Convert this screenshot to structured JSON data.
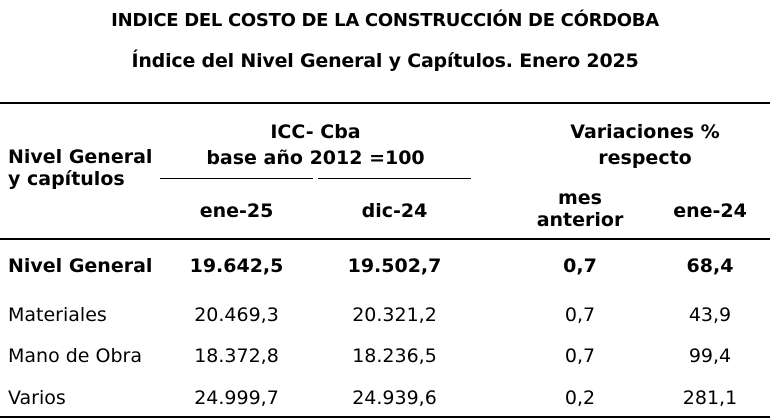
{
  "title": "INDICE DEL COSTO DE LA CONSTRUCCIÓN DE CÓRDOBA",
  "subtitle": "Índice del Nivel General y Capítulos.  Enero 2025",
  "headers": {
    "row_label": [
      "Nivel General",
      "y capítulos"
    ],
    "index_group": [
      "ICC- Cba",
      "base año 2012 =100"
    ],
    "variation_group": [
      "Variaciones %",
      "respecto"
    ],
    "col_current": "ene-25",
    "col_previous": "dic-24",
    "col_prev_month": [
      "mes",
      "anterior"
    ],
    "col_year_ago": "ene-24"
  },
  "rows": [
    {
      "label": "Nivel General",
      "current": "19.642,5",
      "previous": "19.502,7",
      "var_month": "0,7",
      "var_year": "68,4",
      "emphasis": true
    },
    {
      "label": "Materiales",
      "current": "20.469,3",
      "previous": "20.321,2",
      "var_month": "0,7",
      "var_year": "43,9",
      "emphasis": false
    },
    {
      "label": "Mano de Obra",
      "current": "18.372,8",
      "previous": "18.236,5",
      "var_month": "0,7",
      "var_year": "99,4",
      "emphasis": false
    },
    {
      "label": "Varios",
      "current": "24.999,7",
      "previous": "24.939,6",
      "var_month": "0,2",
      "var_year": "281,1",
      "emphasis": false
    }
  ]
}
